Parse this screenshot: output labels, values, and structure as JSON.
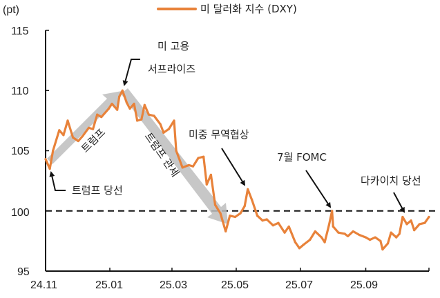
{
  "chart_data": {
    "type": "line",
    "ylabel": "(pt)",
    "legend": {
      "label": "미 달러화 지수 (DXY)",
      "placement": "top-center"
    },
    "ylim": [
      95,
      115
    ],
    "yticks": [
      "115",
      "110",
      "105",
      "100",
      "95"
    ],
    "xticks": [
      {
        "label": "24.11",
        "date": "2024-11-01"
      },
      {
        "label": "25.01",
        "date": "2025-01-01"
      },
      {
        "label": "25.03",
        "date": "2025-03-01"
      },
      {
        "label": "25.05",
        "date": "2025-05-01"
      },
      {
        "label": "25.07",
        "date": "2025-07-01"
      },
      {
        "label": "25.09",
        "date": "2025-09-01"
      }
    ],
    "xlim": [
      "2024-11-01",
      "2025-10-31"
    ],
    "reference_line": {
      "value": 100,
      "style": "dashed"
    },
    "series": [
      {
        "name": "미 달러화 지수 (DXY)",
        "color": "#E8823A",
        "points": [
          [
            "2024-11-01",
            104.3
          ],
          [
            "2024-11-05",
            103.5
          ],
          [
            "2024-11-08",
            105.0
          ],
          [
            "2024-11-14",
            106.7
          ],
          [
            "2024-11-18",
            106.3
          ],
          [
            "2024-11-22",
            107.5
          ],
          [
            "2024-11-27",
            106.1
          ],
          [
            "2024-12-02",
            105.8
          ],
          [
            "2024-12-06",
            106.2
          ],
          [
            "2024-12-12",
            106.9
          ],
          [
            "2024-12-16",
            106.8
          ],
          [
            "2024-12-20",
            108.0
          ],
          [
            "2024-12-24",
            107.8
          ],
          [
            "2024-12-31",
            108.5
          ],
          [
            "2025-01-03",
            108.9
          ],
          [
            "2025-01-08",
            108.4
          ],
          [
            "2025-01-10",
            109.5
          ],
          [
            "2025-01-13",
            110.0
          ],
          [
            "2025-01-17",
            109.0
          ],
          [
            "2025-01-20",
            108.5
          ],
          [
            "2025-01-24",
            108.9
          ],
          [
            "2025-01-27",
            107.5
          ],
          [
            "2025-01-31",
            107.6
          ],
          [
            "2025-02-03",
            108.8
          ],
          [
            "2025-02-07",
            108.0
          ],
          [
            "2025-02-12",
            107.9
          ],
          [
            "2025-02-18",
            107.2
          ],
          [
            "2025-02-21",
            106.5
          ],
          [
            "2025-02-26",
            106.8
          ],
          [
            "2025-03-03",
            107.5
          ],
          [
            "2025-03-05",
            105.0
          ],
          [
            "2025-03-11",
            103.6
          ],
          [
            "2025-03-17",
            103.8
          ],
          [
            "2025-03-21",
            103.7
          ],
          [
            "2025-03-26",
            104.4
          ],
          [
            "2025-03-31",
            104.5
          ],
          [
            "2025-04-03",
            102.2
          ],
          [
            "2025-04-07",
            103.0
          ],
          [
            "2025-04-11",
            100.5
          ],
          [
            "2025-04-16",
            99.8
          ],
          [
            "2025-04-21",
            98.3
          ],
          [
            "2025-04-25",
            99.6
          ],
          [
            "2025-04-30",
            99.5
          ],
          [
            "2025-05-05",
            99.8
          ],
          [
            "2025-05-09",
            100.4
          ],
          [
            "2025-05-12",
            101.8
          ],
          [
            "2025-05-16",
            100.9
          ],
          [
            "2025-05-21",
            99.6
          ],
          [
            "2025-05-26",
            99.2
          ],
          [
            "2025-05-30",
            99.3
          ],
          [
            "2025-06-05",
            98.8
          ],
          [
            "2025-06-10",
            99.0
          ],
          [
            "2025-06-16",
            98.2
          ],
          [
            "2025-06-20",
            98.7
          ],
          [
            "2025-06-26",
            97.4
          ],
          [
            "2025-06-30",
            96.9
          ],
          [
            "2025-07-04",
            97.2
          ],
          [
            "2025-07-10",
            97.6
          ],
          [
            "2025-07-15",
            98.3
          ],
          [
            "2025-07-21",
            97.8
          ],
          [
            "2025-07-24",
            97.4
          ],
          [
            "2025-07-28",
            98.8
          ],
          [
            "2025-07-31",
            100.0
          ],
          [
            "2025-08-01",
            98.7
          ],
          [
            "2025-08-06",
            98.2
          ],
          [
            "2025-08-12",
            98.1
          ],
          [
            "2025-08-15",
            97.9
          ],
          [
            "2025-08-20",
            98.3
          ],
          [
            "2025-08-26",
            98.0
          ],
          [
            "2025-09-01",
            97.8
          ],
          [
            "2025-09-05",
            97.6
          ],
          [
            "2025-09-10",
            97.8
          ],
          [
            "2025-09-15",
            97.5
          ],
          [
            "2025-09-17",
            96.8
          ],
          [
            "2025-09-22",
            97.3
          ],
          [
            "2025-09-25",
            98.2
          ],
          [
            "2025-09-30",
            97.8
          ],
          [
            "2025-10-03",
            98.1
          ],
          [
            "2025-10-06",
            99.5
          ],
          [
            "2025-10-10",
            98.9
          ],
          [
            "2025-10-14",
            99.2
          ],
          [
            "2025-10-17",
            98.4
          ],
          [
            "2025-10-22",
            98.9
          ],
          [
            "2025-10-27",
            99.0
          ],
          [
            "2025-10-31",
            99.5
          ]
        ]
      }
    ],
    "annotations": [
      {
        "id": "election",
        "text": "트럼프 당선"
      },
      {
        "id": "jobs-line1",
        "text": "미 고용"
      },
      {
        "id": "jobs-line2",
        "text": "서프라이즈"
      },
      {
        "id": "trade",
        "text": "미중 무역협상"
      },
      {
        "id": "fomc",
        "text": "7월 FOMC"
      },
      {
        "id": "takaichi",
        "text": "다카이치 당선"
      },
      {
        "id": "trend-up",
        "text": "트럼프"
      },
      {
        "id": "trend-down",
        "text": "트럼프 관세"
      }
    ],
    "trend_arrow_color": "#BDBDBD"
  }
}
